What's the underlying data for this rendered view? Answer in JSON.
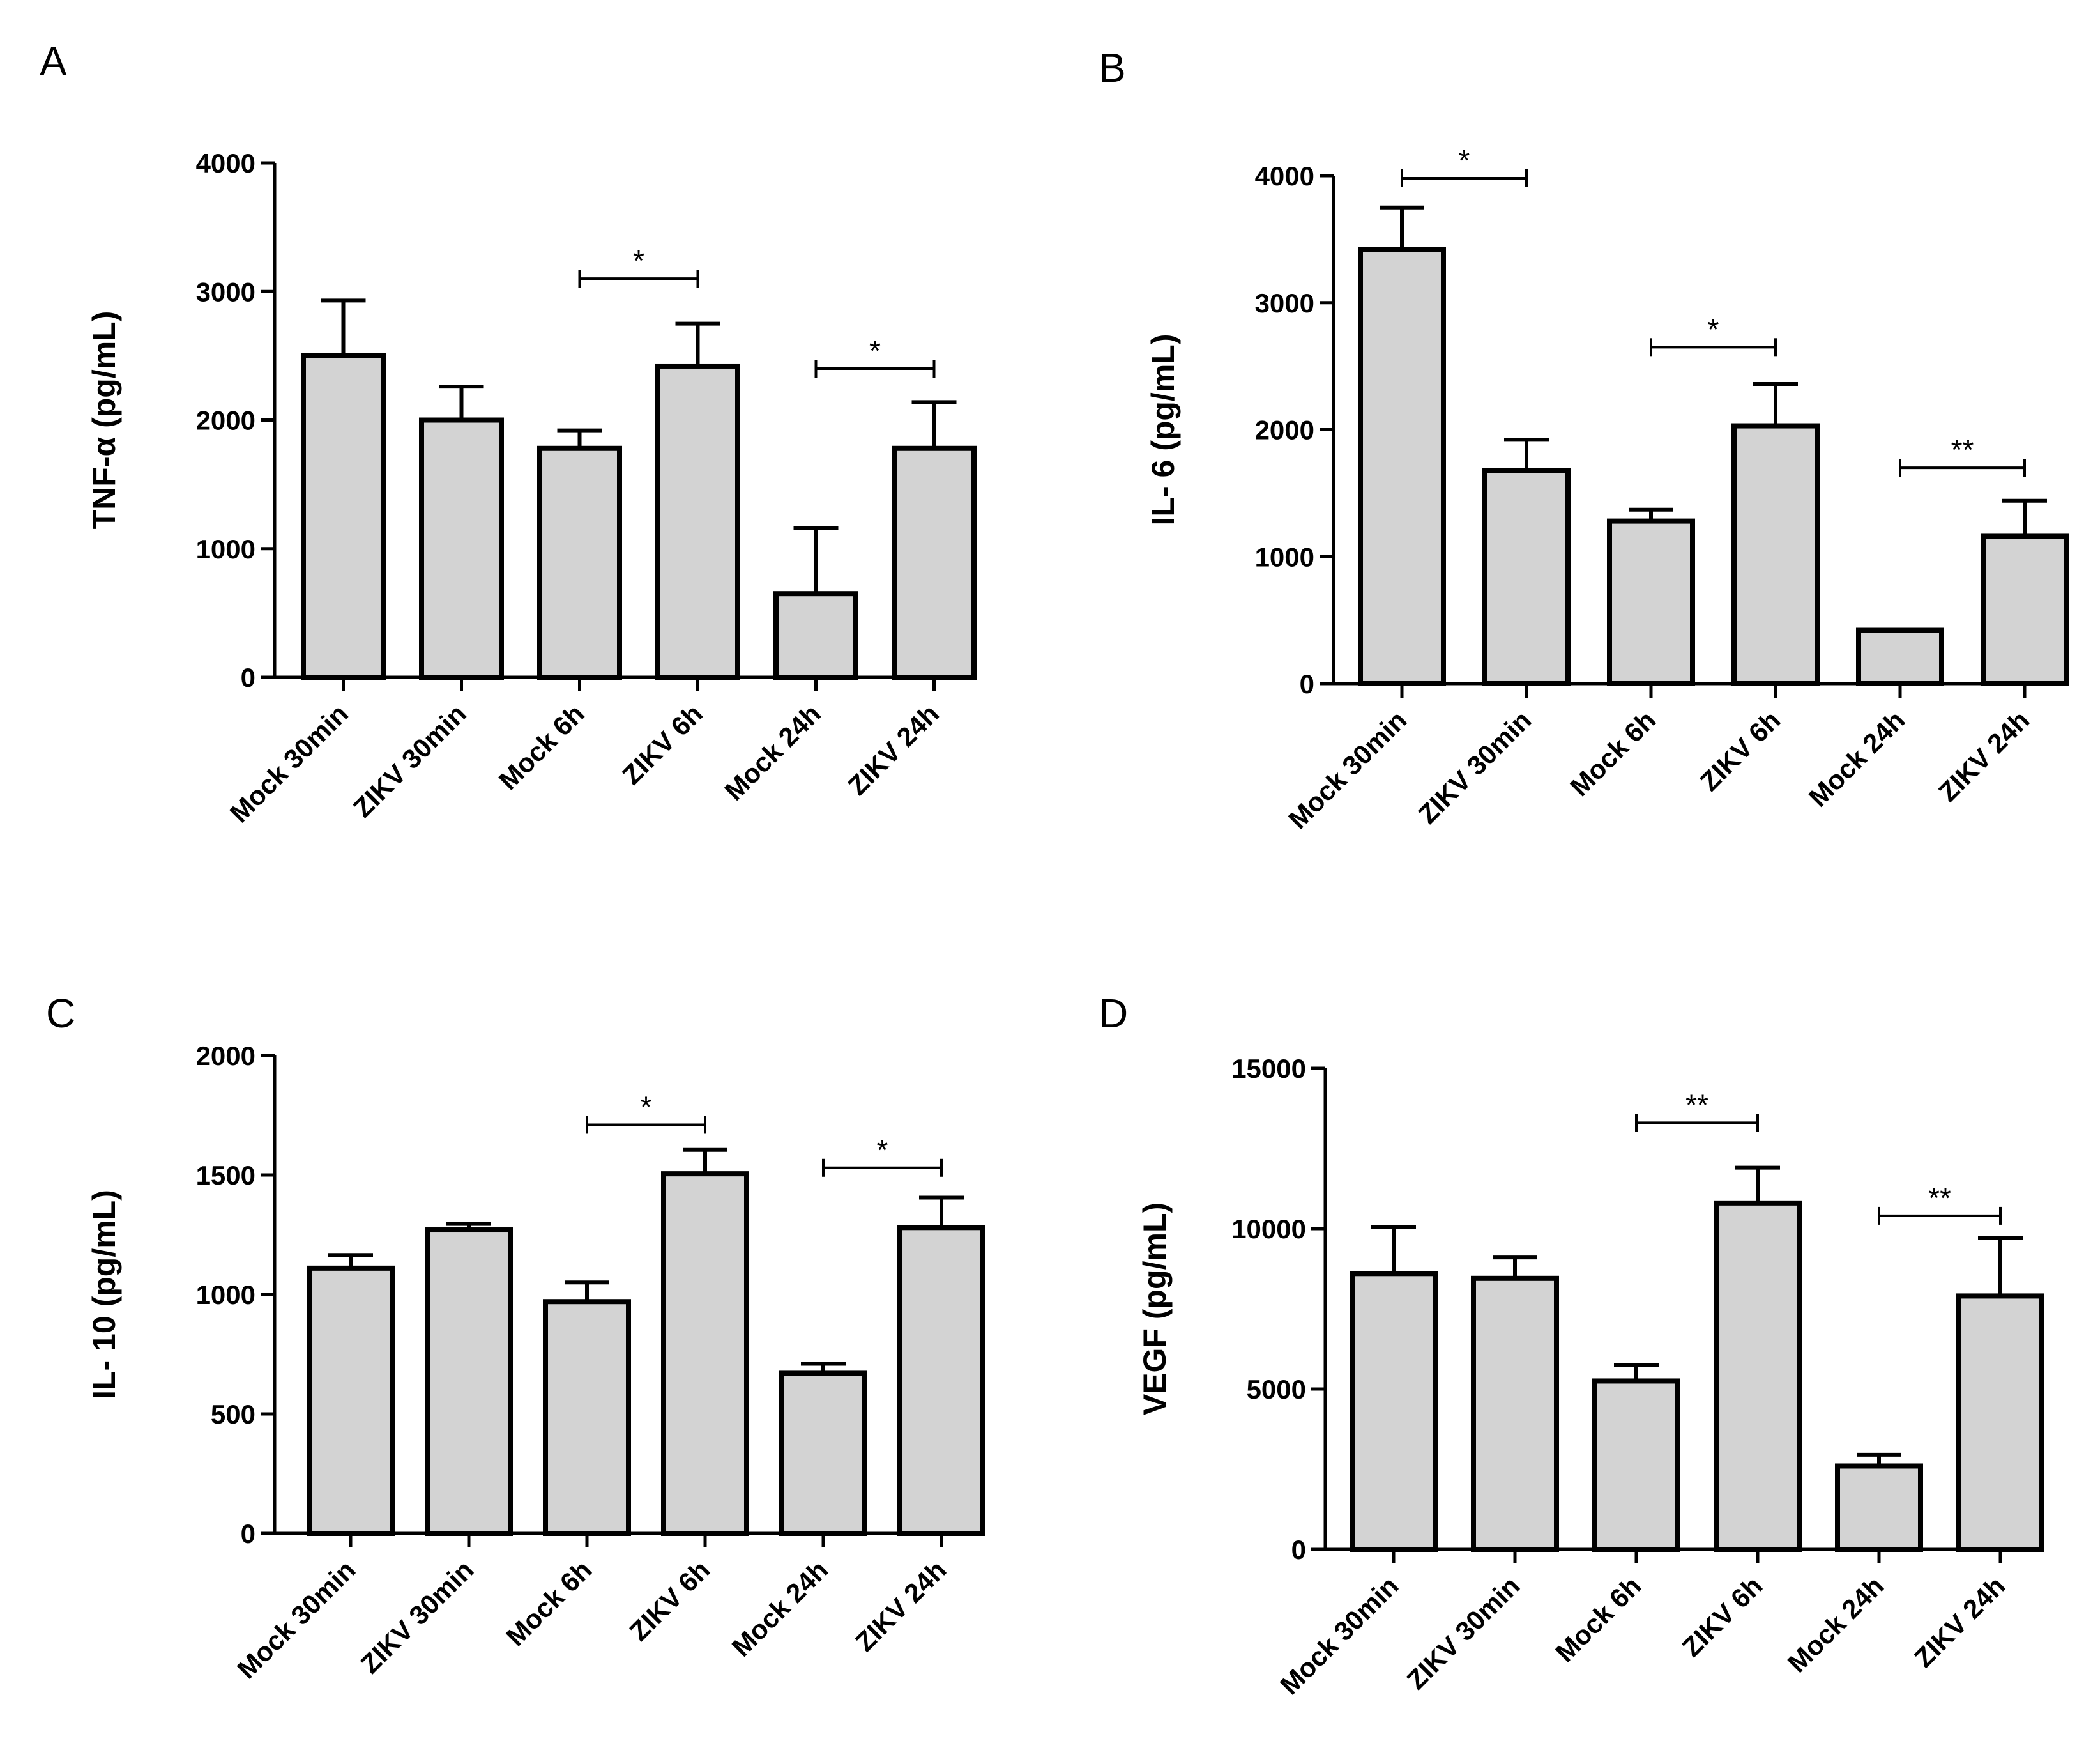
{
  "chart_data": [
    {
      "type": "bar",
      "panel": "A",
      "ylabel": "TNF-α (pg/mL)",
      "categories": [
        "Mock 30min",
        "ZIKV 30min",
        "Mock 6h",
        "ZIKV 6h",
        "Mock 24h",
        "ZIKV 24h"
      ],
      "values": [
        2500,
        2000,
        1780,
        2420,
        650,
        1780
      ],
      "errors": [
        430,
        260,
        140,
        330,
        510,
        360
      ],
      "ylim": [
        0,
        4000
      ],
      "yticks": [
        0,
        1000,
        2000,
        3000,
        4000
      ],
      "significance": [
        {
          "from": 2,
          "to": 3,
          "label": "*",
          "y": 3100
        },
        {
          "from": 4,
          "to": 5,
          "label": "*",
          "y": 2400
        }
      ]
    },
    {
      "type": "bar",
      "panel": "B",
      "ylabel": "IL- 6 (pg/mL)",
      "categories": [
        "Mock 30min",
        "ZIKV 30min",
        "Mock 6h",
        "ZIKV 6h",
        "Mock 24h",
        "ZIKV 24h"
      ],
      "values": [
        3420,
        1680,
        1280,
        2030,
        420,
        1160
      ],
      "errors": [
        330,
        240,
        90,
        330,
        0,
        280
      ],
      "ylim": [
        0,
        4000
      ],
      "yticks": [
        0,
        1000,
        2000,
        3000,
        4000
      ],
      "significance": [
        {
          "from": 0,
          "to": 1,
          "label": "*",
          "y": 3980
        },
        {
          "from": 2,
          "to": 3,
          "label": "*",
          "y": 2650
        },
        {
          "from": 4,
          "to": 5,
          "label": "**",
          "y": 1700
        }
      ]
    },
    {
      "type": "bar",
      "panel": "C",
      "ylabel": "IL- 10 (pg/mL)",
      "categories": [
        "Mock 30min",
        "ZIKV 30min",
        "Mock 6h",
        "ZIKV 6h",
        "Mock 24h",
        "ZIKV 24h"
      ],
      "values": [
        1110,
        1270,
        970,
        1505,
        670,
        1280
      ],
      "errors": [
        55,
        25,
        80,
        100,
        40,
        125
      ],
      "ylim": [
        0,
        2000
      ],
      "yticks": [
        0,
        500,
        1000,
        1500,
        2000
      ],
      "significance": [
        {
          "from": 2,
          "to": 3,
          "label": "*",
          "y": 1710
        },
        {
          "from": 4,
          "to": 5,
          "label": "*",
          "y": 1530
        }
      ]
    },
    {
      "type": "bar",
      "panel": "D",
      "ylabel": "VEGF (pg/mL)",
      "categories": [
        "Mock 30min",
        "ZIKV 30min",
        "Mock 6h",
        "ZIKV 6h",
        "Mock 24h",
        "ZIKV 24h"
      ],
      "values": [
        8600,
        8450,
        5250,
        10800,
        2600,
        7900
      ],
      "errors": [
        1450,
        650,
        500,
        1100,
        350,
        1800
      ],
      "ylim": [
        0,
        15000
      ],
      "yticks": [
        0,
        5000,
        10000,
        15000
      ],
      "significance": [
        {
          "from": 2,
          "to": 3,
          "label": "**",
          "y": 13300
        },
        {
          "from": 4,
          "to": 5,
          "label": "**",
          "y": 10400
        }
      ]
    }
  ]
}
